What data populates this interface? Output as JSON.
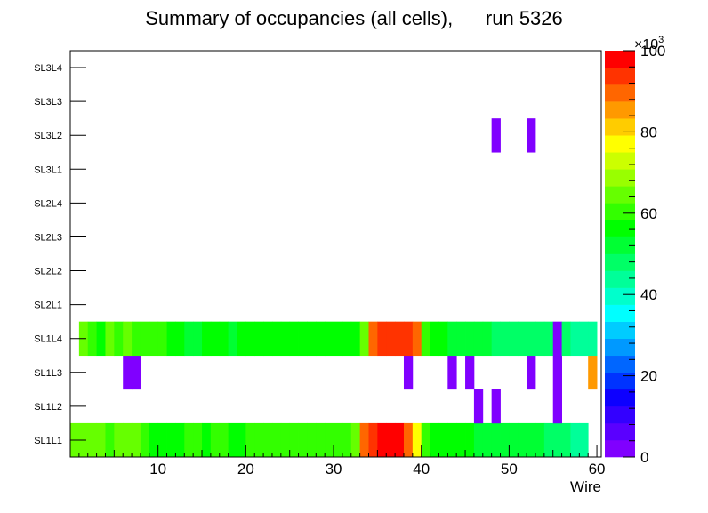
{
  "chart_data": {
    "type": "heatmap",
    "title": "Summary of occupancies (all cells),      run 5326",
    "xlabel": "Wire",
    "ylabel": "",
    "xlim": [
      0,
      60.5
    ],
    "x_ticks": [
      10,
      20,
      30,
      40,
      50,
      60
    ],
    "x_tick_labels": [
      "10",
      "20",
      "30",
      "40",
      "50",
      "60"
    ],
    "y_categories": [
      "SL1L1",
      "SL1L2",
      "SL1L3",
      "SL1L4",
      "SL2L1",
      "SL2L2",
      "SL2L3",
      "SL2L4",
      "SL3L1",
      "SL3L2",
      "SL3L3",
      "SL3L4"
    ],
    "zlim": [
      0,
      100000
    ],
    "z_ticks": [
      0,
      20,
      40,
      60,
      80,
      100
    ],
    "z_tick_labels": [
      "0",
      "20",
      "40",
      "60",
      "80",
      "100"
    ],
    "z_multiplier_label": "×10",
    "z_multiplier_exponent": "3",
    "palette": [
      "#8000ff",
      "#5a00ff",
      "#3300ff",
      "#0d00ff",
      "#0033ff",
      "#0066ff",
      "#0099ff",
      "#00ccff",
      "#00ffff",
      "#00ffcc",
      "#00ff99",
      "#00ff66",
      "#00ff33",
      "#00ff00",
      "#33ff00",
      "#66ff00",
      "#99ff00",
      "#ccff00",
      "#ffff00",
      "#ffcc00",
      "#ff9900",
      "#ff6600",
      "#ff3300",
      "#ff0000"
    ],
    "rows": [
      {
        "layer": "SL1L1",
        "cells": [
          [
            0,
            66
          ],
          [
            1,
            66
          ],
          [
            2,
            66
          ],
          [
            3,
            66
          ],
          [
            4,
            62
          ],
          [
            5,
            66
          ],
          [
            6,
            66
          ],
          [
            7,
            66
          ],
          [
            8,
            62
          ],
          [
            9,
            58
          ],
          [
            10,
            56
          ],
          [
            11,
            56
          ],
          [
            12,
            56
          ],
          [
            13,
            60
          ],
          [
            14,
            60
          ],
          [
            15,
            56
          ],
          [
            16,
            60
          ],
          [
            17,
            60
          ],
          [
            18,
            56
          ],
          [
            19,
            56
          ],
          [
            20,
            60
          ],
          [
            21,
            62
          ],
          [
            22,
            62
          ],
          [
            23,
            62
          ],
          [
            24,
            62
          ],
          [
            25,
            62
          ],
          [
            26,
            60
          ],
          [
            27,
            60
          ],
          [
            28,
            60
          ],
          [
            29,
            60
          ],
          [
            30,
            60
          ],
          [
            31,
            60
          ],
          [
            32,
            66
          ],
          [
            33,
            90
          ],
          [
            34,
            95
          ],
          [
            35,
            100
          ],
          [
            36,
            100
          ],
          [
            37,
            100
          ],
          [
            38,
            90
          ],
          [
            39,
            78
          ],
          [
            40,
            60
          ],
          [
            41,
            58
          ],
          [
            42,
            56
          ],
          [
            43,
            56
          ],
          [
            44,
            56
          ],
          [
            45,
            56
          ],
          [
            46,
            50
          ],
          [
            47,
            50
          ],
          [
            48,
            50
          ],
          [
            49,
            50
          ],
          [
            50,
            50
          ],
          [
            51,
            50
          ],
          [
            52,
            50
          ],
          [
            53,
            50
          ],
          [
            54,
            48
          ],
          [
            55,
            48
          ],
          [
            56,
            48
          ],
          [
            57,
            45
          ],
          [
            58,
            45
          ]
        ]
      },
      {
        "layer": "SL1L2",
        "cells": [
          [
            46,
            1
          ],
          [
            48,
            1
          ],
          [
            55,
            1
          ]
        ]
      },
      {
        "layer": "SL1L3",
        "cells": [
          [
            6,
            1
          ],
          [
            7,
            1
          ],
          [
            38,
            1
          ],
          [
            43,
            1
          ],
          [
            45,
            1
          ],
          [
            52,
            1
          ],
          [
            55,
            1
          ],
          [
            59,
            85
          ]
        ]
      },
      {
        "layer": "SL1L4",
        "cells": [
          [
            1,
            66
          ],
          [
            2,
            62
          ],
          [
            3,
            58
          ],
          [
            4,
            66
          ],
          [
            5,
            62
          ],
          [
            6,
            66
          ],
          [
            7,
            62
          ],
          [
            8,
            62
          ],
          [
            9,
            60
          ],
          [
            10,
            60
          ],
          [
            11,
            56
          ],
          [
            12,
            56
          ],
          [
            13,
            52
          ],
          [
            14,
            52
          ],
          [
            15,
            56
          ],
          [
            16,
            56
          ],
          [
            17,
            56
          ],
          [
            18,
            50
          ],
          [
            19,
            56
          ],
          [
            20,
            56
          ],
          [
            21,
            56
          ],
          [
            22,
            56
          ],
          [
            23,
            58
          ],
          [
            24,
            58
          ],
          [
            25,
            58
          ],
          [
            26,
            58
          ],
          [
            27,
            56
          ],
          [
            28,
            56
          ],
          [
            29,
            58
          ],
          [
            30,
            58
          ],
          [
            31,
            58
          ],
          [
            32,
            58
          ],
          [
            33,
            66
          ],
          [
            34,
            90
          ],
          [
            35,
            95
          ],
          [
            36,
            95
          ],
          [
            37,
            95
          ],
          [
            38,
            95
          ],
          [
            39,
            90
          ],
          [
            40,
            62
          ],
          [
            41,
            56
          ],
          [
            42,
            56
          ],
          [
            43,
            52
          ],
          [
            44,
            52
          ],
          [
            45,
            52
          ],
          [
            46,
            52
          ],
          [
            47,
            52
          ],
          [
            48,
            48
          ],
          [
            49,
            48
          ],
          [
            50,
            48
          ],
          [
            51,
            48
          ],
          [
            52,
            48
          ],
          [
            53,
            48
          ],
          [
            54,
            48
          ],
          [
            55,
            1
          ],
          [
            56,
            48
          ],
          [
            57,
            45
          ],
          [
            58,
            45
          ],
          [
            59,
            45
          ]
        ]
      },
      {
        "layer": "SL2L1",
        "cells": []
      },
      {
        "layer": "SL2L2",
        "cells": []
      },
      {
        "layer": "SL2L3",
        "cells": []
      },
      {
        "layer": "SL2L4",
        "cells": []
      },
      {
        "layer": "SL3L1",
        "cells": []
      },
      {
        "layer": "SL3L2",
        "cells": [
          [
            48,
            1
          ],
          [
            52,
            1
          ]
        ]
      },
      {
        "layer": "SL3L3",
        "cells": []
      },
      {
        "layer": "SL3L4",
        "cells": []
      }
    ]
  }
}
